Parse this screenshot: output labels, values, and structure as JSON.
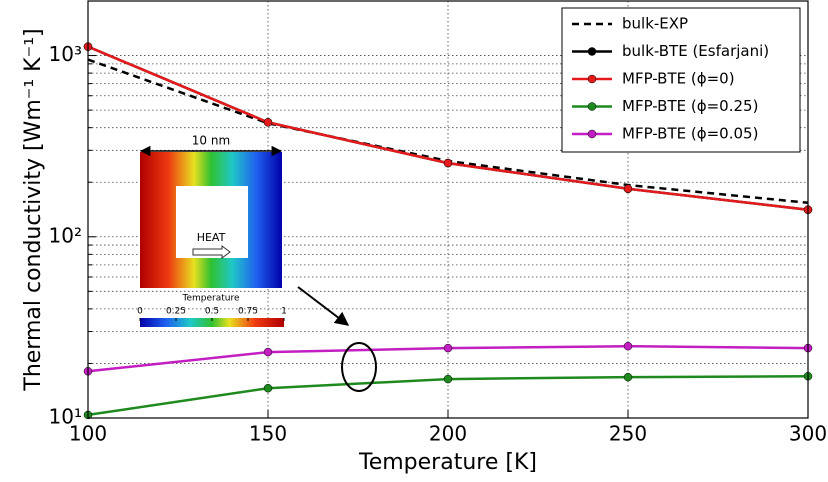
{
  "chart_data": {
    "type": "line",
    "xlabel": "Temperature [K]",
    "ylabel": "Thermal conductivity [Wm⁻¹ K⁻¹]",
    "x": [
      100,
      150,
      200,
      250,
      300
    ],
    "xlim": [
      100,
      300
    ],
    "xticks": [
      100,
      150,
      200,
      250,
      300
    ],
    "ylim": [
      10,
      2000
    ],
    "log_y": true,
    "grid": true,
    "yticks": [
      {
        "value": 10,
        "label": "10¹"
      },
      {
        "value": 100,
        "label": "10²"
      },
      {
        "value": 1000,
        "label": "10³"
      }
    ],
    "yminorticks": [
      20,
      30,
      40,
      50,
      60,
      70,
      80,
      90,
      200,
      300,
      400,
      500,
      600,
      700,
      800,
      900
    ],
    "legend": "upper right",
    "series": [
      {
        "name": "bulk-EXP",
        "color": "#000000",
        "linestyle": "dashed",
        "marker": false,
        "values": [
          950,
          423,
          262,
          193,
          154
        ]
      },
      {
        "name": "bulk-BTE (Esfarjani)",
        "color": "#000000",
        "linestyle": "solid",
        "marker": true,
        "values": [
          1120,
          428,
          255,
          184,
          141
        ]
      },
      {
        "name": "MFP-BTE (ϕ=0)",
        "color": "#e41a1c",
        "linestyle": "solid",
        "marker": true,
        "values": [
          1120,
          428,
          255,
          184,
          141
        ]
      },
      {
        "name": "MFP-BTE (ϕ=0.25)",
        "color": "#1e8a1e",
        "linestyle": "solid",
        "marker": true,
        "values": [
          10.4,
          14.6,
          16.4,
          16.8,
          17.0
        ]
      },
      {
        "name": "MFP-BTE (ϕ=0.05)",
        "color": "#c21ec2",
        "linestyle": "solid",
        "marker": true,
        "values": [
          18.1,
          23.1,
          24.3,
          24.9,
          24.3
        ]
      }
    ],
    "inset": {
      "width_label": "10 nm",
      "arrow_label": "HEAT",
      "colorbar_label": "Temperature",
      "colorbar_ticks": [
        0,
        0.25,
        0.5,
        0.75,
        1
      ]
    }
  }
}
